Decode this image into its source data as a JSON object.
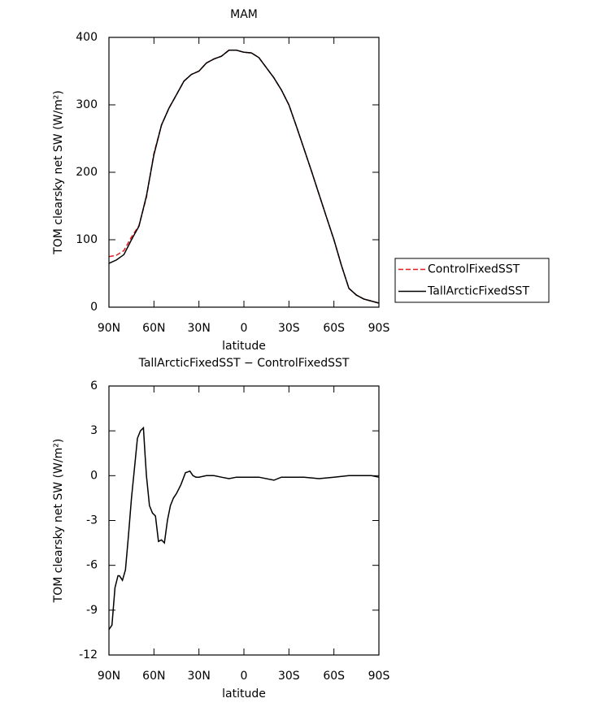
{
  "chart_data": [
    {
      "type": "line",
      "title": "MAM",
      "xlabel": "latitude",
      "ylabel": "TOM clearsky net SW (W/m²)",
      "x": [
        90,
        85,
        80,
        75,
        70,
        65,
        60,
        55,
        50,
        45,
        40,
        35,
        30,
        25,
        20,
        15,
        10,
        5,
        0,
        -5,
        -10,
        -15,
        -20,
        -25,
        -30,
        -35,
        -40,
        -45,
        -50,
        -55,
        -60,
        -65,
        -70,
        -75,
        -80,
        -85,
        -90
      ],
      "series": [
        {
          "name": "ControlFixedSST",
          "color": "#e41a1c",
          "dash": true,
          "values": [
            75,
            77,
            84,
            104,
            121,
            163,
            228,
            270,
            295,
            315,
            335,
            345,
            350,
            362,
            368,
            372,
            381,
            381,
            378,
            377,
            370,
            355,
            340,
            322,
            300,
            268,
            235,
            202,
            168,
            134,
            100,
            62,
            28,
            18,
            12,
            9,
            6
          ]
        },
        {
          "name": "TallArcticFixedSST",
          "color": "#000000",
          "dash": false,
          "values": [
            65,
            70,
            78,
            100,
            120,
            165,
            226,
            270,
            295,
            315,
            335,
            345,
            350,
            362,
            368,
            372,
            381,
            381,
            378,
            377,
            370,
            355,
            340,
            322,
            300,
            268,
            235,
            202,
            168,
            134,
            100,
            62,
            28,
            18,
            12,
            9,
            6
          ]
        }
      ],
      "xlim": [
        90,
        -90
      ],
      "xticks": [
        {
          "value": 90,
          "label": "90N"
        },
        {
          "value": 60,
          "label": "60N"
        },
        {
          "value": 30,
          "label": "30N"
        },
        0,
        {
          "value": -30,
          "label": "30S"
        },
        {
          "value": -60,
          "label": "60S"
        },
        {
          "value": -90,
          "label": "90S"
        }
      ],
      "ylim": [
        0,
        400
      ],
      "yticks": [
        0,
        100,
        200,
        300,
        400
      ],
      "legend": "right"
    },
    {
      "type": "line",
      "title": "TallArcticFixedSST − ControlFixedSST",
      "xlabel": "latitude",
      "ylabel": "TOM clearsky net SW (W/m²)",
      "x": [
        90,
        88,
        86,
        84,
        83,
        81,
        79,
        77,
        75,
        73,
        71,
        69,
        67,
        66,
        65,
        63,
        61,
        59,
        57,
        55,
        53,
        51,
        49,
        47,
        45,
        42,
        39,
        36,
        34,
        32,
        30,
        25,
        20,
        15,
        10,
        5,
        0,
        -10,
        -20,
        -25,
        -30,
        -40,
        -50,
        -60,
        -70,
        -80,
        -85,
        -90
      ],
      "series": [
        {
          "name": "TallArcticFixedSST − ControlFixedSST",
          "color": "#000000",
          "dash": false,
          "values": [
            -10.3,
            -10,
            -7.5,
            -6.7,
            -6.7,
            -7,
            -6.3,
            -4,
            -1.5,
            0.5,
            2.5,
            3,
            3.2,
            1.5,
            0,
            -2,
            -2.5,
            -2.7,
            -4.4,
            -4.3,
            -4.5,
            -3,
            -2,
            -1.5,
            -1.2,
            -0.6,
            0.2,
            0.3,
            0,
            -0.1,
            -0.1,
            0,
            0,
            -0.1,
            -0.2,
            -0.1,
            -0.1,
            -0.1,
            -0.3,
            -0.1,
            -0.1,
            -0.1,
            -0.2,
            -0.1,
            0,
            0,
            0,
            -0.1
          ]
        }
      ],
      "xlim": [
        90,
        -90
      ],
      "xticks": [
        {
          "value": 90,
          "label": "90N"
        },
        {
          "value": 60,
          "label": "60N"
        },
        {
          "value": 30,
          "label": "30N"
        },
        0,
        {
          "value": -30,
          "label": "30S"
        },
        {
          "value": -60,
          "label": "60S"
        },
        {
          "value": -90,
          "label": "90S"
        }
      ],
      "ylim": [
        -12,
        6
      ],
      "yticks": [
        -12,
        -9,
        -6,
        -3,
        0,
        3,
        6
      ]
    }
  ]
}
